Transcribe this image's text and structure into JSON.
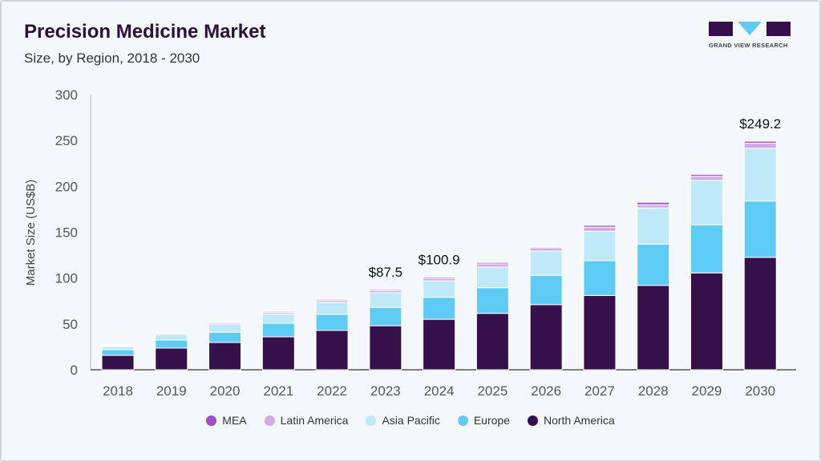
{
  "header": {
    "title": "Precision Medicine Market",
    "subtitle": "Size, by Region, 2018 - 2030"
  },
  "logo": {
    "text": "GRAND VIEW RESEARCH"
  },
  "chart_data": {
    "type": "bar",
    "stacked": true,
    "ylabel": "Market Size (US$B)",
    "ylim": [
      0,
      300
    ],
    "yticks": [
      0,
      50,
      100,
      150,
      200,
      250,
      300
    ],
    "categories": [
      "2018",
      "2019",
      "2020",
      "2021",
      "2022",
      "2023",
      "2024",
      "2025",
      "2026",
      "2027",
      "2028",
      "2029",
      "2030"
    ],
    "series": [
      {
        "name": "North America",
        "color": "#36104a",
        "values": [
          15.7,
          23.6,
          29.7,
          35.9,
          42.9,
          48.0,
          55.0,
          61.5,
          71.0,
          81.0,
          92.0,
          105.6,
          122.5
        ]
      },
      {
        "name": "Europe",
        "color": "#5ecbf5",
        "values": [
          6.2,
          8.8,
          11.3,
          14.8,
          17.5,
          20.0,
          24.0,
          28.0,
          32.0,
          38.0,
          45.0,
          52.4,
          61.5
        ]
      },
      {
        "name": "Asia Pacific",
        "color": "#bfe8f8",
        "values": [
          3.5,
          6.1,
          9.0,
          10.3,
          13.1,
          16.0,
          18.0,
          22.5,
          26.5,
          32.0,
          39.5,
          48.5,
          57.5
        ]
      },
      {
        "name": "Latin America",
        "color": "#d3a9e8",
        "values": [
          0.9,
          1.2,
          1.5,
          1.8,
          2.0,
          2.3,
          2.6,
          3.5,
          3.5,
          4.5,
          3.5,
          4.5,
          5.5
        ]
      },
      {
        "name": "MEA",
        "color": "#9c4fc9",
        "values": [
          0.7,
          0.8,
          0.9,
          1.0,
          1.2,
          1.2,
          1.3,
          1.5,
          1.0,
          2.0,
          2.6,
          2.0,
          2.2
        ]
      }
    ],
    "data_labels": [
      {
        "category": "2023",
        "text": "$87.5",
        "value": 87.5
      },
      {
        "category": "2024",
        "text": "$100.9",
        "value": 100.9
      },
      {
        "category": "2030",
        "text": "$249.2",
        "value": 249.2
      }
    ],
    "legend": {
      "position": "bottom",
      "order": [
        "MEA",
        "Latin America",
        "Asia Pacific",
        "Europe",
        "North America"
      ]
    },
    "grid": false
  }
}
